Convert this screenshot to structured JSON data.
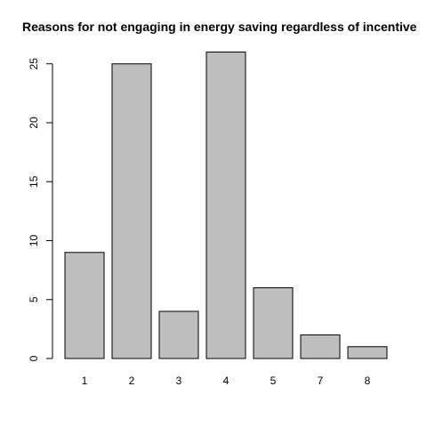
{
  "chart_data": {
    "type": "bar",
    "title": "Reasons for not engaging in energy saving regardless of incentive",
    "xlabel": "",
    "ylabel": "",
    "categories": [
      "1",
      "2",
      "3",
      "4",
      "5",
      "7",
      "8"
    ],
    "values": [
      9,
      25,
      4,
      26,
      6,
      2,
      1
    ],
    "ylim": [
      0,
      26
    ],
    "yticks": [
      0,
      5,
      10,
      15,
      20,
      25
    ],
    "grid": false,
    "legend": "none",
    "colors": {
      "bar_fill": "#bebebe",
      "bar_stroke": "#000000",
      "text": "#000000"
    }
  }
}
